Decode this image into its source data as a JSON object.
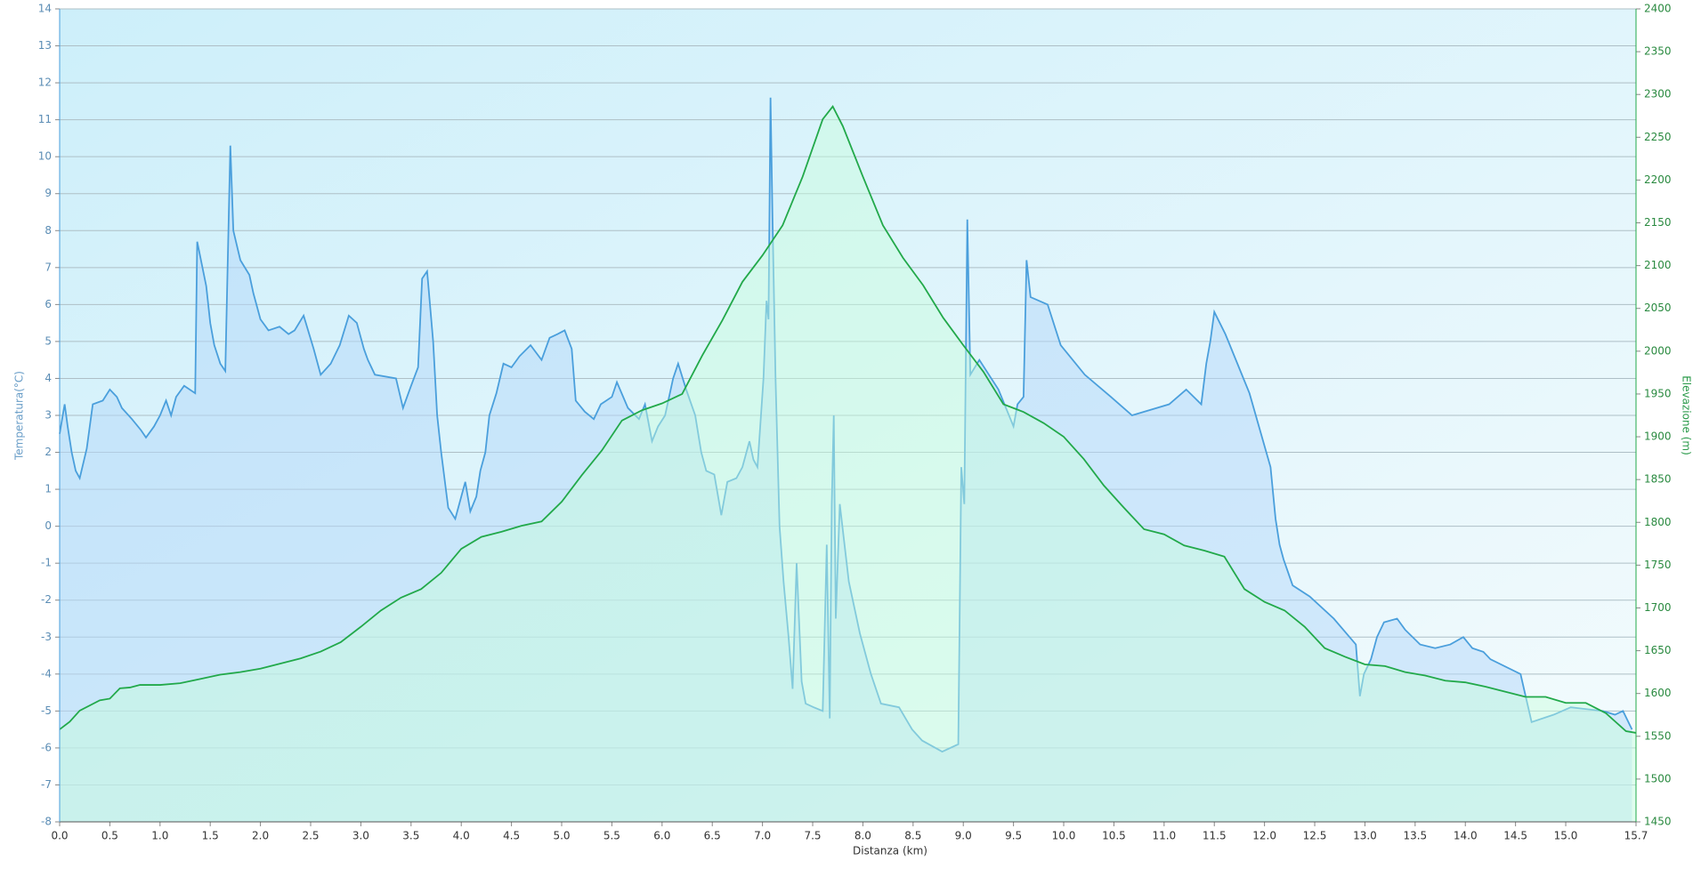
{
  "chart_data": {
    "type": "line",
    "x_label": "Distanza  (km)",
    "y_label": "Temperatura(°C)",
    "y2_label": "Elevazione (m)",
    "xlim": [
      0,
      15.7
    ],
    "xticks": [
      {
        "value": 0,
        "label": "0.0"
      },
      0.5,
      {
        "value": 1,
        "label": "1.0"
      },
      1.5,
      {
        "value": 2,
        "label": "2.0"
      },
      2.5,
      {
        "value": 3,
        "label": "3.0"
      },
      3.5,
      {
        "value": 4,
        "label": "4.0"
      },
      4.5,
      {
        "value": 5,
        "label": "5.0"
      },
      5.5,
      {
        "value": 6,
        "label": "6.0"
      },
      6.5,
      {
        "value": 7,
        "label": "7.0"
      },
      7.5,
      {
        "value": 8,
        "label": "8.0"
      },
      8.5,
      {
        "value": 9,
        "label": "9.0"
      },
      9.5,
      {
        "value": 10,
        "label": "10.0"
      },
      10.5,
      {
        "value": 11,
        "label": "11.0"
      },
      11.5,
      {
        "value": 12,
        "label": "12.0"
      },
      12.5,
      {
        "value": 13,
        "label": "13.0"
      },
      13.5,
      {
        "value": 14,
        "label": "14.0"
      },
      14.5,
      {
        "value": 15,
        "label": "15.0"
      },
      15.7
    ],
    "ylim": [
      -8,
      14
    ],
    "yticks": [
      -8,
      -7,
      -6,
      -5,
      -4,
      -3,
      -2,
      -1,
      0,
      1,
      2,
      3,
      4,
      5,
      6,
      7,
      8,
      9,
      10,
      11,
      12,
      13,
      14
    ],
    "y2lim": [
      1450,
      2400
    ],
    "y2ticks": [
      1450,
      1500,
      1550,
      1600,
      1650,
      1700,
      1750,
      1800,
      1850,
      1900,
      1950,
      2000,
      2050,
      2100,
      2150,
      2200,
      2250,
      2300,
      2350,
      2400
    ],
    "grid": true,
    "series": [
      {
        "name": "Temperatura",
        "color": "#4a9fdc",
        "axis": "y",
        "x": [
          0,
          0.05,
          0.08,
          0.12,
          0.16,
          0.2,
          0.27,
          0.33,
          0.43,
          0.5,
          0.57,
          0.62,
          0.72,
          0.81,
          0.86,
          0.94,
          1.0,
          1.06,
          1.11,
          1.16,
          1.24,
          1.35,
          1.37,
          1.46,
          1.5,
          1.54,
          1.6,
          1.65,
          1.7,
          1.73,
          1.8,
          1.89,
          1.93,
          2.0,
          2.08,
          2.19,
          2.28,
          2.34,
          2.43,
          2.53,
          2.6,
          2.7,
          2.79,
          2.88,
          2.96,
          3.03,
          3.07,
          3.14,
          3.35,
          3.42,
          3.5,
          3.57,
          3.61,
          3.66,
          3.72,
          3.76,
          3.8,
          3.87,
          3.94,
          4.0,
          4.04,
          4.09,
          4.15,
          4.19,
          4.24,
          4.28,
          4.35,
          4.42,
          4.5,
          4.58,
          4.69,
          4.8,
          4.88,
          4.96,
          5.03,
          5.1,
          5.14,
          5.23,
          5.32,
          5.39,
          5.5,
          5.55,
          5.66,
          5.77,
          5.83,
          5.9,
          5.96,
          6.03,
          6.11,
          6.16,
          6.24,
          6.33,
          6.39,
          6.44,
          6.52,
          6.59,
          6.65,
          6.74,
          6.8,
          6.87,
          6.91,
          6.95,
          7.01,
          7.04,
          7.06,
          7.08,
          7.1,
          7.13,
          7.17,
          7.21,
          7.26,
          7.3,
          7.34,
          7.39,
          7.43,
          7.51,
          7.6,
          7.64,
          7.67,
          7.69,
          7.71,
          7.73,
          7.77,
          7.86,
          7.97,
          8.08,
          8.18,
          8.36,
          8.49,
          8.59,
          8.79,
          8.95,
          8.98,
          9.01,
          9.04,
          9.07,
          9.16,
          9.35,
          9.5,
          9.54,
          9.6,
          9.63,
          9.67,
          9.84,
          9.97,
          10.21,
          10.47,
          10.68,
          11.05,
          11.22,
          11.37,
          11.42,
          11.46,
          11.5,
          11.61,
          11.85,
          12.06,
          12.11,
          12.15,
          12.19,
          12.28,
          12.45,
          12.69,
          12.91,
          12.95,
          12.99,
          13.06,
          13.12,
          13.19,
          13.32,
          13.4,
          13.55,
          13.7,
          13.85,
          13.98,
          14.07,
          14.18,
          14.25,
          14.55,
          14.66,
          14.88,
          15.05,
          15.37,
          15.49,
          15.57,
          15.66
        ],
        "values": [
          2.5,
          3.3,
          2.7,
          2.0,
          1.5,
          1.3,
          2.1,
          3.3,
          3.4,
          3.7,
          3.5,
          3.2,
          2.9,
          2.6,
          2.4,
          2.7,
          3.0,
          3.4,
          3.0,
          3.5,
          3.8,
          3.6,
          7.7,
          6.5,
          5.5,
          4.9,
          4.4,
          4.2,
          10.3,
          8.0,
          7.2,
          6.8,
          6.3,
          5.6,
          5.3,
          5.4,
          5.2,
          5.3,
          5.7,
          4.8,
          4.1,
          4.4,
          4.9,
          5.7,
          5.5,
          4.8,
          4.5,
          4.1,
          4.0,
          3.2,
          3.8,
          4.3,
          6.7,
          6.9,
          5.0,
          3.0,
          2.0,
          0.5,
          0.2,
          0.8,
          1.2,
          0.4,
          0.8,
          1.5,
          2.0,
          3.0,
          3.6,
          4.4,
          4.3,
          4.6,
          4.9,
          4.5,
          5.1,
          5.2,
          5.3,
          4.8,
          3.4,
          3.1,
          2.9,
          3.3,
          3.5,
          3.9,
          3.2,
          2.9,
          3.3,
          2.3,
          2.7,
          3.0,
          4.0,
          4.4,
          3.7,
          3.0,
          2.0,
          1.5,
          1.4,
          0.3,
          1.2,
          1.3,
          1.6,
          2.3,
          1.8,
          1.6,
          4.0,
          6.1,
          5.6,
          11.6,
          8.3,
          4.0,
          0.0,
          -1.5,
          -3.0,
          -4.4,
          -1.0,
          -4.2,
          -4.8,
          -4.9,
          -5.0,
          -0.5,
          -5.2,
          0.6,
          3.0,
          -2.5,
          0.6,
          -1.5,
          -2.9,
          -4.0,
          -4.8,
          -4.9,
          -5.5,
          -5.8,
          -6.1,
          -5.9,
          1.6,
          0.6,
          8.3,
          4.1,
          4.5,
          3.7,
          2.7,
          3.3,
          3.5,
          7.2,
          6.2,
          6.0,
          4.9,
          4.1,
          3.5,
          3.0,
          3.3,
          3.7,
          3.3,
          4.4,
          5.0,
          5.8,
          5.2,
          3.6,
          1.6,
          0.2,
          -0.5,
          -0.9,
          -1.6,
          -1.9,
          -2.5,
          -3.2,
          -4.6,
          -4.0,
          -3.6,
          -3.0,
          -2.6,
          -2.5,
          -2.8,
          -3.2,
          -3.3,
          -3.2,
          -3.0,
          -3.3,
          -3.4,
          -3.6,
          -4.0,
          -5.3,
          -5.1,
          -4.9,
          -5.0,
          -5.1,
          -5.0,
          -5.5
        ]
      },
      {
        "name": "Elevazione",
        "color": "#22a94a",
        "axis": "y2",
        "x": [
          0,
          0.1,
          0.2,
          0.4,
          0.5,
          0.6,
          0.7,
          0.8,
          1.0,
          1.2,
          1.4,
          1.6,
          1.8,
          2.0,
          2.2,
          2.4,
          2.6,
          2.8,
          3.0,
          3.2,
          3.4,
          3.6,
          3.8,
          4.0,
          4.2,
          4.4,
          4.6,
          4.8,
          5.0,
          5.2,
          5.4,
          5.6,
          5.8,
          6.0,
          6.2,
          6.4,
          6.6,
          6.8,
          7.0,
          7.2,
          7.4,
          7.6,
          7.7,
          7.8,
          8.0,
          8.2,
          8.4,
          8.6,
          8.8,
          9.0,
          9.2,
          9.4,
          9.6,
          9.8,
          10.0,
          10.2,
          10.4,
          10.6,
          10.8,
          11.0,
          11.2,
          11.4,
          11.6,
          11.8,
          12.0,
          12.2,
          12.4,
          12.6,
          12.8,
          13.0,
          13.2,
          13.4,
          13.6,
          13.8,
          14.0,
          14.2,
          14.4,
          14.6,
          14.8,
          15.0,
          15.2,
          15.4,
          15.6,
          15.7
        ],
        "values": [
          1558,
          1567,
          1580,
          1592,
          1594,
          1606,
          1607,
          1610,
          1610,
          1612,
          1617,
          1622,
          1625,
          1629,
          1635,
          1641,
          1649,
          1660,
          1678,
          1697,
          1712,
          1722,
          1741,
          1769,
          1783,
          1789,
          1796,
          1801,
          1824,
          1855,
          1884,
          1919,
          1931,
          1939,
          1950,
          1995,
          2036,
          2081,
          2112,
          2147,
          2204,
          2271,
          2286,
          2263,
          2204,
          2147,
          2109,
          2077,
          2039,
          2007,
          1976,
          1938,
          1929,
          1916,
          1900,
          1874,
          1843,
          1817,
          1792,
          1786,
          1773,
          1767,
          1760,
          1722,
          1707,
          1697,
          1678,
          1653,
          1643,
          1634,
          1632,
          1625,
          1621,
          1615,
          1613,
          1608,
          1602,
          1596,
          1596,
          1589,
          1589,
          1577,
          1556,
          1554
        ]
      }
    ]
  }
}
